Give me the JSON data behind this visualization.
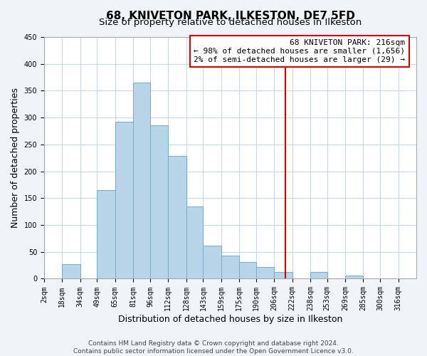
{
  "title": "68, KNIVETON PARK, ILKESTON, DE7 5FD",
  "subtitle": "Size of property relative to detached houses in Ilkeston",
  "xlabel": "Distribution of detached houses by size in Ilkeston",
  "ylabel": "Number of detached properties",
  "bar_left_edges": [
    2,
    18,
    34,
    49,
    65,
    81,
    96,
    112,
    128,
    143,
    159,
    175,
    190,
    206,
    222,
    238,
    253,
    269,
    285,
    300
  ],
  "bar_widths": [
    16,
    16,
    15,
    16,
    16,
    15,
    16,
    16,
    15,
    16,
    16,
    15,
    16,
    16,
    16,
    15,
    16,
    16,
    15,
    16
  ],
  "bar_heights": [
    0,
    27,
    0,
    165,
    292,
    365,
    285,
    228,
    135,
    62,
    43,
    31,
    22,
    12,
    0,
    12,
    0,
    6,
    0,
    0
  ],
  "bar_color": "#b8d4e8",
  "bar_edge_color": "#7aaac8",
  "vline_x": 216,
  "vline_color": "#cc0000",
  "ylim": [
    0,
    450
  ],
  "xlim": [
    2,
    332
  ],
  "tick_labels": [
    "2sqm",
    "18sqm",
    "34sqm",
    "49sqm",
    "65sqm",
    "81sqm",
    "96sqm",
    "112sqm",
    "128sqm",
    "143sqm",
    "159sqm",
    "175sqm",
    "190sqm",
    "206sqm",
    "222sqm",
    "238sqm",
    "253sqm",
    "269sqm",
    "285sqm",
    "300sqm",
    "316sqm"
  ],
  "tick_positions": [
    2,
    18,
    34,
    49,
    65,
    81,
    96,
    112,
    128,
    143,
    159,
    175,
    190,
    206,
    222,
    238,
    253,
    269,
    285,
    300,
    316
  ],
  "annotation_title": "68 KNIVETON PARK: 216sqm",
  "annotation_line1": "← 98% of detached houses are smaller (1,656)",
  "annotation_line2": "2% of semi-detached houses are larger (29) →",
  "footer1": "Contains HM Land Registry data © Crown copyright and database right 2024.",
  "footer2": "Contains public sector information licensed under the Open Government Licence v3.0.",
  "fig_background_color": "#f0f4f8",
  "plot_background_color": "#ffffff",
  "grid_color": "#c8d8e8",
  "title_fontsize": 11,
  "subtitle_fontsize": 9.5,
  "axis_label_fontsize": 9,
  "tick_fontsize": 7,
  "annotation_fontsize": 8,
  "footer_fontsize": 6.5
}
